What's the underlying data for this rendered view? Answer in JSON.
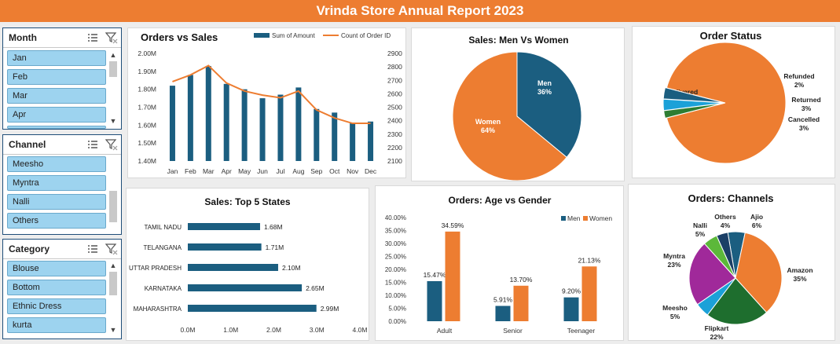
{
  "title": "Vrinda Store Annual Report 2023",
  "colors": {
    "blue": "#1b5e80",
    "orange": "#ed7d31",
    "banner": "#ed7d31",
    "slicer_item": "#9dd3ef"
  },
  "slicers": [
    {
      "title": "Month",
      "items": [
        "Jan",
        "Feb",
        "Mar",
        "Apr"
      ],
      "icons": [
        "multi-select-icon",
        "clear-filter-icon"
      ]
    },
    {
      "title": "Channel",
      "items": [
        "Meesho",
        "Myntra",
        "Nalli",
        "Others"
      ],
      "icons": [
        "multi-select-icon",
        "clear-filter-icon"
      ]
    },
    {
      "title": "Category",
      "items": [
        "Blouse",
        "Bottom",
        "Ethnic Dress",
        "kurta"
      ],
      "icons": [
        "multi-select-icon",
        "clear-filter-icon"
      ]
    }
  ],
  "chart_data": [
    {
      "id": "orders-vs-sales",
      "type": "bar",
      "title": "Orders vs Sales",
      "categories": [
        "Jan",
        "Feb",
        "Mar",
        "Apr",
        "May",
        "Jun",
        "Jul",
        "Aug",
        "Sep",
        "Oct",
        "Nov",
        "Dec"
      ],
      "series": [
        {
          "name": "Sum of Amount",
          "type": "bar",
          "axis": "left",
          "values": [
            1.82,
            1.88,
            1.93,
            1.83,
            1.8,
            1.75,
            1.77,
            1.81,
            1.69,
            1.67,
            1.61,
            1.62
          ]
        },
        {
          "name": "Count of Order ID",
          "type": "line",
          "axis": "right",
          "values": [
            2690,
            2740,
            2810,
            2680,
            2620,
            2590,
            2570,
            2620,
            2480,
            2420,
            2380,
            2380
          ]
        }
      ],
      "ylim": [
        1.4,
        2.0
      ],
      "yticks": [
        "1.40M",
        "1.50M",
        "1.60M",
        "1.70M",
        "1.80M",
        "1.90M",
        "2.00M"
      ],
      "y2lim": [
        2100,
        2900
      ],
      "y2ticks": [
        "2100",
        "2200",
        "2300",
        "2400",
        "2500",
        "2600",
        "2700",
        "2800",
        "2900"
      ],
      "legend": "top-right"
    },
    {
      "id": "sales-men-women",
      "type": "pie",
      "title": "Sales: Men Vs Women",
      "slices": [
        {
          "label": "Men",
          "value": 36,
          "display": "36%",
          "color": "#1b5e80"
        },
        {
          "label": "Women",
          "value": 64,
          "display": "64%",
          "color": "#ed7d31"
        }
      ]
    },
    {
      "id": "order-status",
      "type": "pie",
      "title": "Order Status",
      "slices": [
        {
          "label": "Delivered",
          "value": 92,
          "display": "92%",
          "color": "#ed7d31"
        },
        {
          "label": "Refunded",
          "value": 2,
          "display": "2%",
          "color": "#2e7d32"
        },
        {
          "label": "Returned",
          "value": 3,
          "display": "3%",
          "color": "#1ba1d8"
        },
        {
          "label": "Cancelled",
          "value": 3,
          "display": "3%",
          "color": "#1b5e80"
        }
      ]
    },
    {
      "id": "top-5-states",
      "type": "bar",
      "orientation": "horizontal",
      "title": "Sales: Top 5 States",
      "categories": [
        "TAMIL NADU",
        "TELANGANA",
        "UTTAR PRADESH",
        "KARNATAKA",
        "MAHARASHTRA"
      ],
      "values": [
        1.68,
        1.71,
        2.1,
        2.65,
        2.99
      ],
      "data_labels": [
        "1.68M",
        "1.71M",
        "2.10M",
        "2.65M",
        "2.99M"
      ],
      "xlim": [
        0,
        4
      ],
      "xticks": [
        "0.0M",
        "1.0M",
        "2.0M",
        "3.0M",
        "4.0M"
      ]
    },
    {
      "id": "age-vs-gender",
      "type": "bar",
      "title": "Orders: Age vs Gender",
      "categories": [
        "Adult",
        "Senior",
        "Teenager"
      ],
      "series": [
        {
          "name": "Men",
          "values": [
            15.47,
            5.91,
            9.2
          ],
          "labels": [
            "15.47%",
            "5.91%",
            "9.20%"
          ]
        },
        {
          "name": "Women",
          "values": [
            34.59,
            13.7,
            21.13
          ],
          "labels": [
            "34.59%",
            "13.70%",
            "21.13%"
          ]
        }
      ],
      "ylim": [
        0,
        40
      ],
      "yticks": [
        "0.00%",
        "5.00%",
        "10.00%",
        "15.00%",
        "20.00%",
        "25.00%",
        "30.00%",
        "35.00%",
        "40.00%"
      ],
      "legend": "top-right"
    },
    {
      "id": "channels",
      "type": "pie",
      "title": "Orders: Channels",
      "slices": [
        {
          "label": "Ajio",
          "value": 6,
          "display": "6%",
          "color": "#1b5e80"
        },
        {
          "label": "Amazon",
          "value": 35,
          "display": "35%",
          "color": "#ed7d31"
        },
        {
          "label": "Flipkart",
          "value": 22,
          "display": "22%",
          "color": "#1e6e2e"
        },
        {
          "label": "Meesho",
          "value": 5,
          "display": "5%",
          "color": "#1ba1d8"
        },
        {
          "label": "Myntra",
          "value": 23,
          "display": "23%",
          "color": "#a0299a"
        },
        {
          "label": "Nalli",
          "value": 5,
          "display": "5%",
          "color": "#5cb83a"
        },
        {
          "label": "Others",
          "value": 4,
          "display": "4%",
          "color": "#1b3f66"
        }
      ]
    }
  ]
}
